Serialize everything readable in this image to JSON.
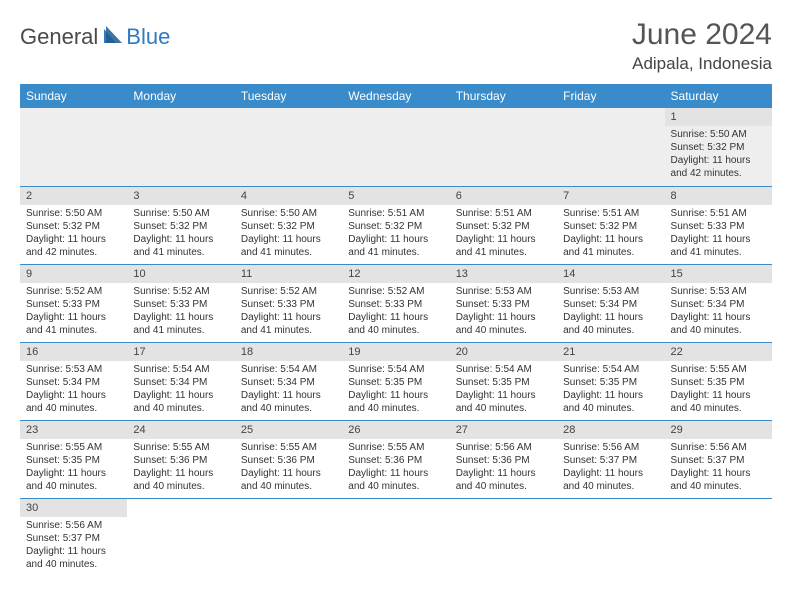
{
  "logo": {
    "text1": "General",
    "text2": "Blue"
  },
  "title": "June 2024",
  "location": "Adipala, Indonesia",
  "colors": {
    "header_bg": "#3a8bc9",
    "header_text": "#ffffff",
    "daynum_bg": "#e3e3e3",
    "empty_bg": "#eeeeee",
    "border": "#3a8bc9",
    "logo_gray": "#4a4a4a",
    "logo_blue": "#2f7ac0"
  },
  "weekdays": [
    "Sunday",
    "Monday",
    "Tuesday",
    "Wednesday",
    "Thursday",
    "Friday",
    "Saturday"
  ],
  "weeks": [
    [
      null,
      null,
      null,
      null,
      null,
      null,
      {
        "n": "1",
        "sr": "Sunrise: 5:50 AM",
        "ss": "Sunset: 5:32 PM",
        "dl": "Daylight: 11 hours and 42 minutes."
      }
    ],
    [
      {
        "n": "2",
        "sr": "Sunrise: 5:50 AM",
        "ss": "Sunset: 5:32 PM",
        "dl": "Daylight: 11 hours and 42 minutes."
      },
      {
        "n": "3",
        "sr": "Sunrise: 5:50 AM",
        "ss": "Sunset: 5:32 PM",
        "dl": "Daylight: 11 hours and 41 minutes."
      },
      {
        "n": "4",
        "sr": "Sunrise: 5:50 AM",
        "ss": "Sunset: 5:32 PM",
        "dl": "Daylight: 11 hours and 41 minutes."
      },
      {
        "n": "5",
        "sr": "Sunrise: 5:51 AM",
        "ss": "Sunset: 5:32 PM",
        "dl": "Daylight: 11 hours and 41 minutes."
      },
      {
        "n": "6",
        "sr": "Sunrise: 5:51 AM",
        "ss": "Sunset: 5:32 PM",
        "dl": "Daylight: 11 hours and 41 minutes."
      },
      {
        "n": "7",
        "sr": "Sunrise: 5:51 AM",
        "ss": "Sunset: 5:32 PM",
        "dl": "Daylight: 11 hours and 41 minutes."
      },
      {
        "n": "8",
        "sr": "Sunrise: 5:51 AM",
        "ss": "Sunset: 5:33 PM",
        "dl": "Daylight: 11 hours and 41 minutes."
      }
    ],
    [
      {
        "n": "9",
        "sr": "Sunrise: 5:52 AM",
        "ss": "Sunset: 5:33 PM",
        "dl": "Daylight: 11 hours and 41 minutes."
      },
      {
        "n": "10",
        "sr": "Sunrise: 5:52 AM",
        "ss": "Sunset: 5:33 PM",
        "dl": "Daylight: 11 hours and 41 minutes."
      },
      {
        "n": "11",
        "sr": "Sunrise: 5:52 AM",
        "ss": "Sunset: 5:33 PM",
        "dl": "Daylight: 11 hours and 41 minutes."
      },
      {
        "n": "12",
        "sr": "Sunrise: 5:52 AM",
        "ss": "Sunset: 5:33 PM",
        "dl": "Daylight: 11 hours and 40 minutes."
      },
      {
        "n": "13",
        "sr": "Sunrise: 5:53 AM",
        "ss": "Sunset: 5:33 PM",
        "dl": "Daylight: 11 hours and 40 minutes."
      },
      {
        "n": "14",
        "sr": "Sunrise: 5:53 AM",
        "ss": "Sunset: 5:34 PM",
        "dl": "Daylight: 11 hours and 40 minutes."
      },
      {
        "n": "15",
        "sr": "Sunrise: 5:53 AM",
        "ss": "Sunset: 5:34 PM",
        "dl": "Daylight: 11 hours and 40 minutes."
      }
    ],
    [
      {
        "n": "16",
        "sr": "Sunrise: 5:53 AM",
        "ss": "Sunset: 5:34 PM",
        "dl": "Daylight: 11 hours and 40 minutes."
      },
      {
        "n": "17",
        "sr": "Sunrise: 5:54 AM",
        "ss": "Sunset: 5:34 PM",
        "dl": "Daylight: 11 hours and 40 minutes."
      },
      {
        "n": "18",
        "sr": "Sunrise: 5:54 AM",
        "ss": "Sunset: 5:34 PM",
        "dl": "Daylight: 11 hours and 40 minutes."
      },
      {
        "n": "19",
        "sr": "Sunrise: 5:54 AM",
        "ss": "Sunset: 5:35 PM",
        "dl": "Daylight: 11 hours and 40 minutes."
      },
      {
        "n": "20",
        "sr": "Sunrise: 5:54 AM",
        "ss": "Sunset: 5:35 PM",
        "dl": "Daylight: 11 hours and 40 minutes."
      },
      {
        "n": "21",
        "sr": "Sunrise: 5:54 AM",
        "ss": "Sunset: 5:35 PM",
        "dl": "Daylight: 11 hours and 40 minutes."
      },
      {
        "n": "22",
        "sr": "Sunrise: 5:55 AM",
        "ss": "Sunset: 5:35 PM",
        "dl": "Daylight: 11 hours and 40 minutes."
      }
    ],
    [
      {
        "n": "23",
        "sr": "Sunrise: 5:55 AM",
        "ss": "Sunset: 5:35 PM",
        "dl": "Daylight: 11 hours and 40 minutes."
      },
      {
        "n": "24",
        "sr": "Sunrise: 5:55 AM",
        "ss": "Sunset: 5:36 PM",
        "dl": "Daylight: 11 hours and 40 minutes."
      },
      {
        "n": "25",
        "sr": "Sunrise: 5:55 AM",
        "ss": "Sunset: 5:36 PM",
        "dl": "Daylight: 11 hours and 40 minutes."
      },
      {
        "n": "26",
        "sr": "Sunrise: 5:55 AM",
        "ss": "Sunset: 5:36 PM",
        "dl": "Daylight: 11 hours and 40 minutes."
      },
      {
        "n": "27",
        "sr": "Sunrise: 5:56 AM",
        "ss": "Sunset: 5:36 PM",
        "dl": "Daylight: 11 hours and 40 minutes."
      },
      {
        "n": "28",
        "sr": "Sunrise: 5:56 AM",
        "ss": "Sunset: 5:37 PM",
        "dl": "Daylight: 11 hours and 40 minutes."
      },
      {
        "n": "29",
        "sr": "Sunrise: 5:56 AM",
        "ss": "Sunset: 5:37 PM",
        "dl": "Daylight: 11 hours and 40 minutes."
      }
    ],
    [
      {
        "n": "30",
        "sr": "Sunrise: 5:56 AM",
        "ss": "Sunset: 5:37 PM",
        "dl": "Daylight: 11 hours and 40 minutes."
      },
      null,
      null,
      null,
      null,
      null,
      null
    ]
  ]
}
